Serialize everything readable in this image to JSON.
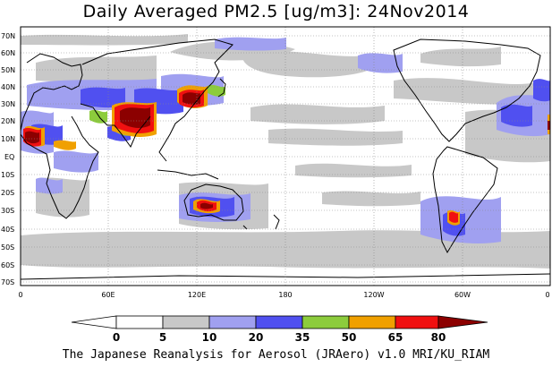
{
  "title": "Daily Averaged PM2.5 [ug/m3]: 24Nov2014",
  "footer": "The Japanese Reanalysis for Aerosol (JRAero) v1.0 MRI/KU_RIAM",
  "lat_labels": [
    "70N",
    "60N",
    "50N",
    "40N",
    "30N",
    "20N",
    "10N",
    "EQ",
    "10S",
    "20S",
    "30S",
    "40S",
    "50S",
    "60S",
    "70S"
  ],
  "lon_labels": [
    "0",
    "60E",
    "120E",
    "180",
    "120W",
    "60W",
    "0"
  ],
  "colorbar": {
    "tick_labels": [
      "0",
      "5",
      "10",
      "20",
      "35",
      "50",
      "65",
      "80"
    ],
    "colors": [
      "#ffffff",
      "#c8c8c8",
      "#a0a0f0",
      "#5050f0",
      "#8ccc3c",
      "#f0a000",
      "#f01010",
      "#8c0000"
    ]
  },
  "layers": {
    "land_outline": "black",
    "gridlines": "dotted"
  }
}
